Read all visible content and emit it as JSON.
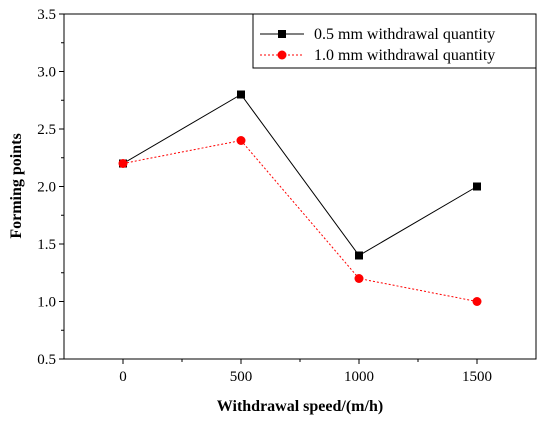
{
  "chart_data": {
    "type": "line",
    "xlabel": "Withdrawal speed/(m/h)",
    "ylabel": "Forming points",
    "x": [
      0,
      500,
      1000,
      1500
    ],
    "x_ticks": [
      "0",
      "500",
      "1000",
      "1500"
    ],
    "y_ticks": [
      "0.5",
      "1.0",
      "1.5",
      "2.0",
      "2.5",
      "3.0",
      "3.5"
    ],
    "xlim": [
      -250,
      1750
    ],
    "ylim": [
      0.5,
      3.5
    ],
    "grid": false,
    "legend_position": "top-right",
    "series": [
      {
        "name": "0.5 mm withdrawal quantity",
        "values": [
          2.2,
          2.8,
          1.4,
          2.0
        ],
        "color": "#000000",
        "marker": "square",
        "line_style": "solid"
      },
      {
        "name": "1.0 mm withdrawal quantity",
        "values": [
          2.2,
          2.4,
          1.2,
          1.0
        ],
        "color": "#ff0000",
        "marker": "circle",
        "line_style": "dotted"
      }
    ]
  }
}
